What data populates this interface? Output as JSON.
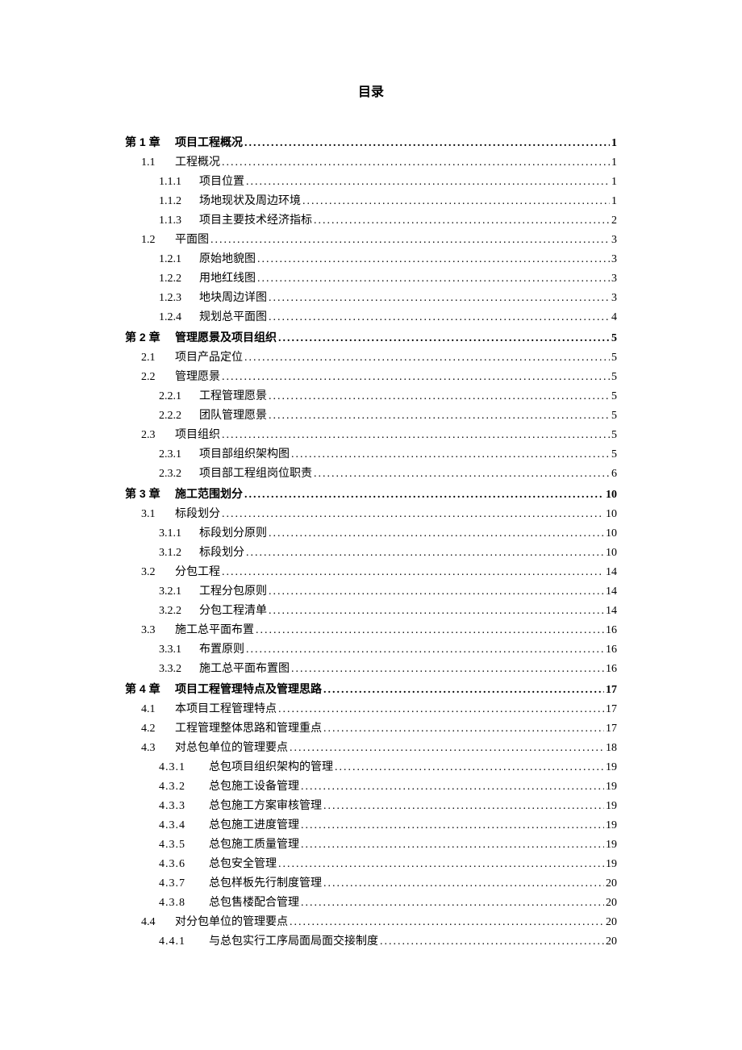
{
  "title": "目录",
  "dots": "...................................................................................................................................................",
  "entries": [
    {
      "level": "chapter",
      "num": "第 1 章",
      "text": "项目工程概况",
      "page": "1"
    },
    {
      "level": "section",
      "num": "1.1",
      "text": "工程概况",
      "page": "1"
    },
    {
      "level": "subsection",
      "num": "1.1.1",
      "text": "项目位置",
      "page": "1"
    },
    {
      "level": "subsection",
      "num": "1.1.2",
      "text": "场地现状及周边环境",
      "page": "1"
    },
    {
      "level": "subsection",
      "num": "1.1.3",
      "text": "项目主要技术经济指标",
      "page": "2"
    },
    {
      "level": "section",
      "num": "1.2",
      "text": "平面图",
      "page": "3"
    },
    {
      "level": "subsection",
      "num": "1.2.1",
      "text": "原始地貌图",
      "page": "3"
    },
    {
      "level": "subsection",
      "num": "1.2.2",
      "text": "用地红线图",
      "page": "3"
    },
    {
      "level": "subsection",
      "num": "1.2.3",
      "text": "地块周边详图",
      "page": "3"
    },
    {
      "level": "subsection",
      "num": "1.2.4",
      "text": "规划总平面图",
      "page": "4"
    },
    {
      "level": "chapter",
      "num": "第 2 章",
      "text": "管理愿景及项目组织",
      "page": "5"
    },
    {
      "level": "section",
      "num": "2.1",
      "text": "项目产品定位",
      "page": "5"
    },
    {
      "level": "section",
      "num": "2.2",
      "text": "管理愿景",
      "page": "5"
    },
    {
      "level": "subsection",
      "num": "2.2.1",
      "text": "工程管理愿景",
      "page": "5"
    },
    {
      "level": "subsection",
      "num": "2.2.2",
      "text": "团队管理愿景",
      "page": "5"
    },
    {
      "level": "section",
      "num": "2.3",
      "text": "项目组织",
      "page": "5"
    },
    {
      "level": "subsection",
      "num": "2.3.1",
      "text": "项目部组织架构图",
      "page": "5"
    },
    {
      "level": "subsection",
      "num": "2.3.2",
      "text": "项目部工程组岗位职责",
      "page": "6"
    },
    {
      "level": "chapter",
      "num": "第 3 章",
      "text": "施工范围划分",
      "page": "10"
    },
    {
      "level": "section",
      "num": "3.1",
      "text": "标段划分",
      "page": "10"
    },
    {
      "level": "subsection",
      "num": "3.1.1",
      "text": "标段划分原则",
      "page": "10"
    },
    {
      "level": "subsection",
      "num": "3.1.2",
      "text": "标段划分",
      "page": "10"
    },
    {
      "level": "section",
      "num": "3.2",
      "text": "分包工程",
      "page": "14"
    },
    {
      "level": "subsection",
      "num": "3.2.1",
      "text": "工程分包原则",
      "page": "14"
    },
    {
      "level": "subsection",
      "num": "3.2.2",
      "text": "分包工程清单",
      "page": "14"
    },
    {
      "level": "section",
      "num": "3.3",
      "text": "施工总平面布置",
      "page": "16"
    },
    {
      "level": "subsection",
      "num": "3.3.1",
      "text": "布置原则",
      "page": "16"
    },
    {
      "level": "subsection",
      "num": "3.3.2",
      "text": "施工总平面布置图",
      "page": "16"
    },
    {
      "level": "chapter",
      "num": "第 4 章",
      "text": "项目工程管理特点及管理思路",
      "page": "17"
    },
    {
      "level": "section",
      "num": "4.1",
      "text": "本项目工程管理特点",
      "page": "17"
    },
    {
      "level": "section",
      "num": "4.2",
      "text": "工程管理整体思路和管理重点",
      "page": "17"
    },
    {
      "level": "section",
      "num": "4.3",
      "text": "对总包单位的管理要点",
      "page": "18"
    },
    {
      "level": "subsection-cn",
      "num": "4.3.1",
      "text": "总包项目组织架构的管理",
      "page": "19"
    },
    {
      "level": "subsection-cn",
      "num": "4.3.2",
      "text": "总包施工设备管理",
      "page": "19"
    },
    {
      "level": "subsection-cn",
      "num": "4.3.3",
      "text": "总包施工方案审核管理",
      "page": "19"
    },
    {
      "level": "subsection-cn",
      "num": "4.3.4",
      "text": "总包施工进度管理",
      "page": "19"
    },
    {
      "level": "subsection-cn",
      "num": "4.3.5",
      "text": "总包施工质量管理",
      "page": "19"
    },
    {
      "level": "subsection-cn",
      "num": "4.3.6",
      "text": "总包安全管理",
      "page": "19"
    },
    {
      "level": "subsection-cn",
      "num": "4.3.7",
      "text": "总包样板先行制度管理",
      "page": "20"
    },
    {
      "level": "subsection-cn",
      "num": "4.3.8",
      "text": "总包售楼配合管理",
      "page": "20"
    },
    {
      "level": "section",
      "num": "4.4",
      "text": "对分包单位的管理要点",
      "page": "20"
    },
    {
      "level": "subsection-cn",
      "num": "4.4.1",
      "text": "与总包实行工序局面局面交接制度",
      "page": "20"
    }
  ]
}
